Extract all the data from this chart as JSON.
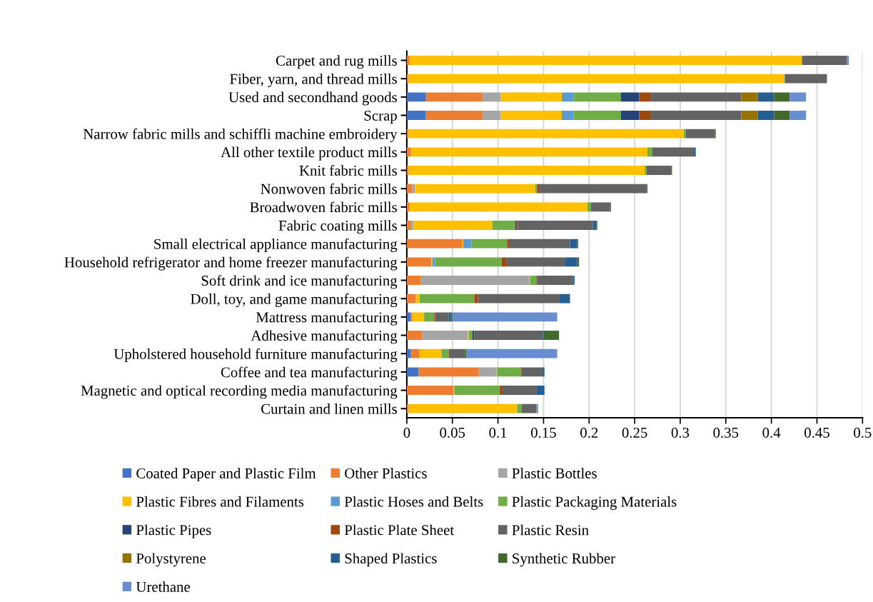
{
  "chart_data": {
    "type": "bar",
    "orientation": "horizontal",
    "stacked": true,
    "grid": "x",
    "legend": "bottom",
    "categories": [
      "Carpet and rug mills",
      "Fiber, yarn, and thread mills",
      "Used and secondhand goods",
      "Scrap",
      "Narrow fabric mills and schiffli machine embroidery",
      "All other textile product mills",
      "Knit fabric mills",
      "Nonwoven fabric mills",
      "Broadwoven fabric mills",
      "Fabric coating mills",
      "Small electrical appliance manufacturing",
      "Household refrigerator and home freezer manufacturing",
      "Soft drink and ice manufacturing",
      "Doll, toy, and game manufacturing",
      "Mattress manufacturing",
      "Adhesive manufacturing",
      "Upholstered household furniture manufacturing",
      "Coffee and tea manufacturing",
      "Magnetic and optical recording media manufacturing",
      "Curtain and linen mills"
    ],
    "xlim": [
      0,
      0.5
    ],
    "xticks": [
      0,
      0.05,
      0.1,
      0.15,
      0.2,
      0.25,
      0.3,
      0.35,
      0.4,
      0.45,
      0.5
    ],
    "series": [
      {
        "name": "Coated Paper and Plastic Film",
        "color": "#4472c4",
        "values": [
          0,
          0,
          0.021,
          0.021,
          0,
          0,
          0,
          0,
          0,
          0,
          0,
          0,
          0,
          0,
          0.004,
          0,
          0.004,
          0.013,
          0,
          0
        ]
      },
      {
        "name": "Other Plastics",
        "color": "#ed7d31",
        "values": [
          0.003,
          0.002,
          0.062,
          0.062,
          0.002,
          0.004,
          0.002,
          0.006,
          0.003,
          0.004,
          0.061,
          0.027,
          0.015,
          0.01,
          0.002,
          0.017,
          0.01,
          0.066,
          0.051,
          0.002
        ]
      },
      {
        "name": "Plastic Bottles",
        "color": "#a5a5a5",
        "values": [
          0,
          0,
          0.02,
          0.02,
          0,
          0,
          0,
          0.003,
          0,
          0.003,
          0,
          0,
          0.119,
          0,
          0,
          0.05,
          0,
          0.019,
          0,
          null
        ]
      },
      {
        "name": "Plastic Fibres and Filaments",
        "color": "#ffc000",
        "values": [
          0.43,
          0.412,
          0.067,
          0.067,
          0.302,
          0.26,
          0.259,
          0.132,
          0.195,
          0.087,
          0.001,
          0.001,
          0.001,
          0.004,
          0.013,
          0.001,
          0.024,
          0.001,
          0.001,
          0.119
        ]
      },
      {
        "name": "Plastic Hoses and Belts",
        "color": "#5b9bd5",
        "values": [
          0,
          0,
          0.013,
          0.013,
          0,
          0,
          0,
          0,
          0,
          0,
          0.009,
          0.003,
          0,
          0,
          0,
          0,
          0,
          0,
          0,
          0
        ]
      },
      {
        "name": "Plastic Packaging Materials",
        "color": "#70ad47",
        "values": [
          0.001,
          0.001,
          0.052,
          0.052,
          0.002,
          0.005,
          0.002,
          0.002,
          0.004,
          0.025,
          0.039,
          0.073,
          0.007,
          0.06,
          0.011,
          0.004,
          0.008,
          0.026,
          0.05,
          0.005
        ]
      },
      {
        "name": "Plastic Pipes",
        "color": "#264478",
        "values": [
          0,
          0,
          0.02,
          0.02,
          0,
          0,
          0,
          0,
          0,
          0.001,
          0,
          0,
          0,
          0,
          0,
          0.002,
          0,
          0,
          0,
          0
        ]
      },
      {
        "name": "Plastic Plate Sheet",
        "color": "#9e480e",
        "values": [
          0,
          0,
          0.013,
          0.013,
          0,
          0,
          0,
          0.002,
          0,
          0.002,
          0.002,
          0.005,
          0.001,
          0.004,
          0.001,
          0,
          0.001,
          0.001,
          0.003,
          0
        ]
      },
      {
        "name": "Plastic Resin",
        "color": "#636363",
        "values": [
          0.049,
          0.046,
          0.099,
          0.099,
          0.032,
          0.046,
          0.027,
          0.118,
          0.021,
          0.082,
          0.067,
          0.065,
          0.039,
          0.089,
          0.015,
          0.075,
          0.015,
          0.023,
          0.037,
          0.016
        ]
      },
      {
        "name": "Polystyrene",
        "color": "#997300",
        "values": [
          0,
          0,
          0.018,
          0.018,
          0,
          0,
          0,
          0,
          0,
          0,
          0,
          0,
          0,
          0,
          0,
          0,
          0,
          0,
          0,
          0
        ]
      },
      {
        "name": "Shaped Plastics",
        "color": "#255e91",
        "values": [
          0,
          0,
          0.018,
          0.018,
          0,
          0.002,
          0,
          0,
          0,
          0.004,
          0.008,
          0.013,
          0.002,
          0.012,
          0.002,
          0.001,
          0.001,
          0.002,
          0.009,
          0
        ]
      },
      {
        "name": "Synthetic Rubber",
        "color": "#43682b",
        "values": [
          0,
          0,
          0.017,
          0.017,
          0.001,
          0,
          0.001,
          0.001,
          0.001,
          0.001,
          0.001,
          0.002,
          0,
          0,
          0.002,
          0.017,
          0.002,
          0,
          0,
          0
        ]
      },
      {
        "name": "Urethane",
        "color": "#698ed0",
        "values": [
          0.002,
          0,
          0.018,
          0.018,
          0,
          0,
          0,
          0,
          0,
          0,
          0,
          0,
          0,
          0,
          0.115,
          0,
          0.1,
          0,
          0,
          0.002
        ]
      }
    ]
  }
}
